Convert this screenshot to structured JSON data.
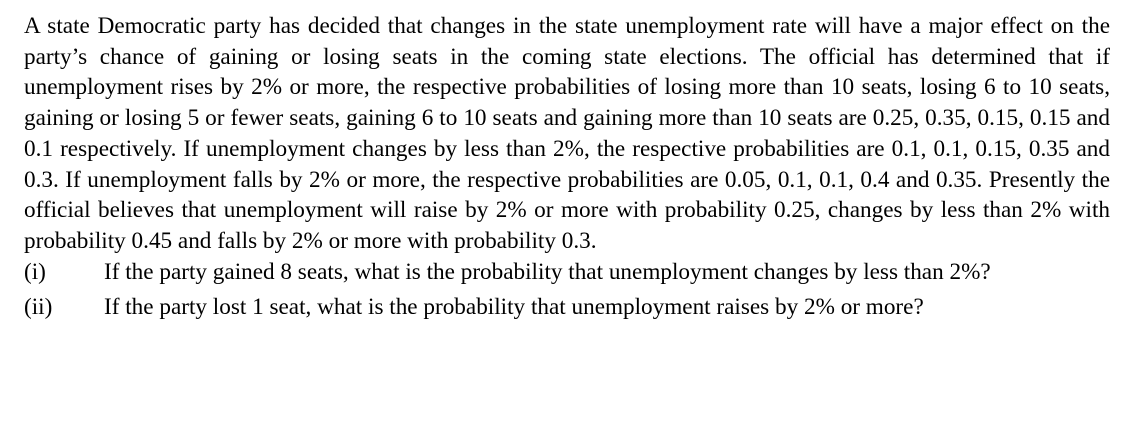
{
  "problem": {
    "paragraph": "A state Democratic party has decided that changes in the state unemployment rate will have a major effect on the party’s chance of gaining or losing seats in the coming state elections. The official has determined that if unemployment rises by 2% or more, the respective probabilities of losing more than 10 seats, losing 6 to 10 seats, gaining or losing 5 or fewer seats, gaining 6 to 10 seats and gaining more than 10 seats are 0.25, 0.35, 0.15, 0.15 and 0.1 respectively. If unemployment changes by less than 2%, the respective probabilities are 0.1, 0.1, 0.15, 0.35 and 0.3. If unemployment falls by 2% or more, the respective probabilities are 0.05, 0.1, 0.1, 0.4 and 0.35. Presently the official believes that unemployment will raise by 2% or more with probability 0.25, changes by less than 2% with probability 0.45 and falls by 2% or more with probability 0.3.",
    "questions": [
      {
        "label": "(i)",
        "text": "If the party gained 8 seats, what is the probability that unemployment changes by less than 2%?"
      },
      {
        "label": "(ii)",
        "text": "If the party lost 1 seat, what is the probability that unemployment raises by 2% or more?"
      }
    ]
  }
}
